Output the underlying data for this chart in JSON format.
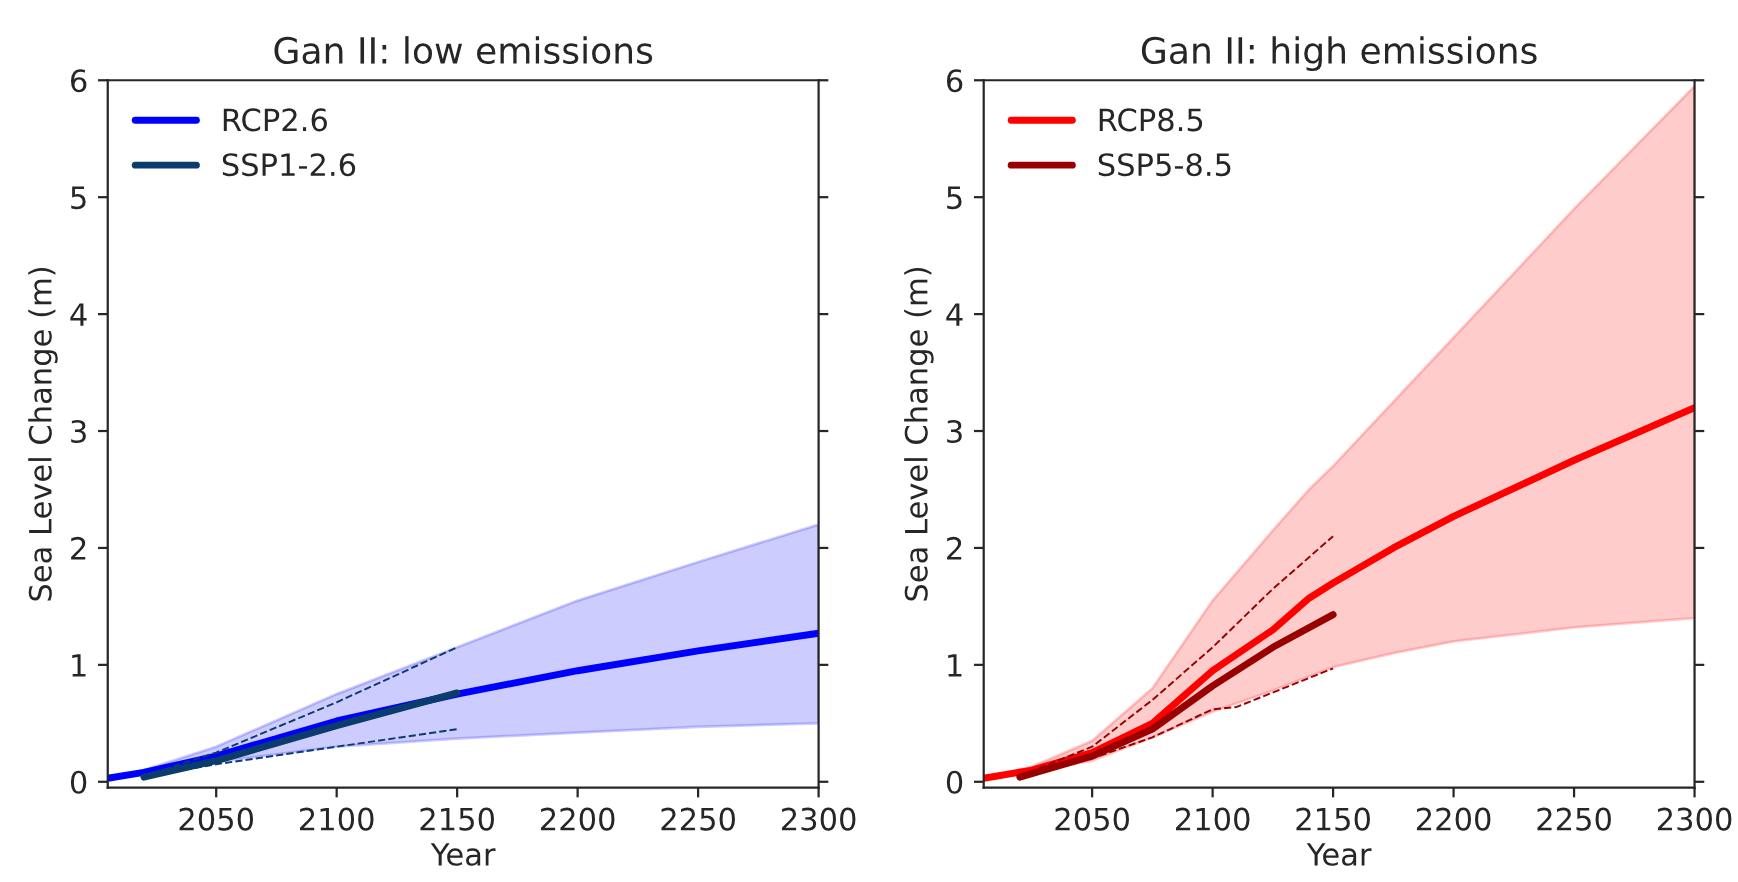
{
  "chart_data": [
    {
      "type": "line",
      "title": "Gan II: low emissions",
      "xlabel": "Year",
      "ylabel": "Sea Level Change (m)",
      "xlim": [
        2005,
        2300
      ],
      "ylim": [
        -0.05,
        6
      ],
      "xticks": [
        2050,
        2100,
        2150,
        2200,
        2250,
        2300
      ],
      "yticks": [
        0,
        1,
        2,
        3,
        4,
        5,
        6
      ],
      "grid": false,
      "legend": "top left",
      "series": [
        {
          "name": "RCP2.6",
          "color": "#0000ff",
          "x": [
            2005,
            2020,
            2050,
            2100,
            2150,
            2200,
            2250,
            2300
          ],
          "values": [
            0.03,
            0.08,
            0.22,
            0.52,
            0.75,
            0.95,
            1.12,
            1.27
          ],
          "lower": [
            0.03,
            0.07,
            0.17,
            0.3,
            0.37,
            0.42,
            0.47,
            0.5
          ],
          "upper": [
            0.03,
            0.1,
            0.3,
            0.75,
            1.15,
            1.55,
            1.88,
            2.2
          ]
        },
        {
          "name": "SSP1-2.6",
          "color": "#0b3c6b",
          "x": [
            2020,
            2050,
            2100,
            2150
          ],
          "values": [
            0.04,
            0.18,
            0.48,
            0.76
          ]
        },
        {
          "color": "#0b3c6b",
          "line_style": "dashed",
          "x": [
            2020,
            2050,
            2100,
            2150
          ],
          "values": [
            0.05,
            0.25,
            0.68,
            1.15
          ]
        },
        {
          "color": "#0b3c6b",
          "line_style": "dashed",
          "x": [
            2020,
            2050,
            2100,
            2150
          ],
          "values": [
            0.04,
            0.15,
            0.3,
            0.45
          ]
        }
      ]
    },
    {
      "type": "line",
      "title": "Gan II: high emissions",
      "xlabel": "Year",
      "ylabel": "Sea Level Change (m)",
      "xlim": [
        2005,
        2300
      ],
      "ylim": [
        -0.05,
        6
      ],
      "xticks": [
        2050,
        2100,
        2150,
        2200,
        2250,
        2300
      ],
      "yticks": [
        0,
        1,
        2,
        3,
        4,
        5,
        6
      ],
      "grid": false,
      "legend": "top left",
      "series": [
        {
          "name": "RCP8.5",
          "color": "#ff0000",
          "x": [
            2005,
            2025,
            2050,
            2075,
            2100,
            2125,
            2140,
            2150,
            2175,
            2200,
            2250,
            2300
          ],
          "values": [
            0.03,
            0.1,
            0.25,
            0.5,
            0.95,
            1.3,
            1.57,
            1.7,
            2.0,
            2.27,
            2.75,
            3.2
          ],
          "lower": [
            0.03,
            0.08,
            0.18,
            0.38,
            0.6,
            0.78,
            0.9,
            0.98,
            1.1,
            1.2,
            1.32,
            1.4
          ],
          "upper": [
            0.03,
            0.13,
            0.35,
            0.8,
            1.55,
            2.15,
            2.5,
            2.7,
            3.25,
            3.8,
            4.9,
            5.95
          ]
        },
        {
          "name": "SSP5-8.5",
          "color": "#990000",
          "x": [
            2020,
            2050,
            2075,
            2100,
            2125,
            2150
          ],
          "values": [
            0.04,
            0.22,
            0.45,
            0.82,
            1.15,
            1.43
          ]
        },
        {
          "color": "#990000",
          "line_style": "dashed",
          "x": [
            2020,
            2050,
            2075,
            2100,
            2125,
            2150
          ],
          "values": [
            0.05,
            0.3,
            0.7,
            1.15,
            1.65,
            2.1
          ]
        },
        {
          "color": "#990000",
          "line_style": "dashed",
          "x": [
            2020,
            2050,
            2075,
            2100,
            2110,
            2150
          ],
          "values": [
            0.04,
            0.2,
            0.38,
            0.62,
            0.64,
            0.97
          ]
        }
      ]
    }
  ]
}
